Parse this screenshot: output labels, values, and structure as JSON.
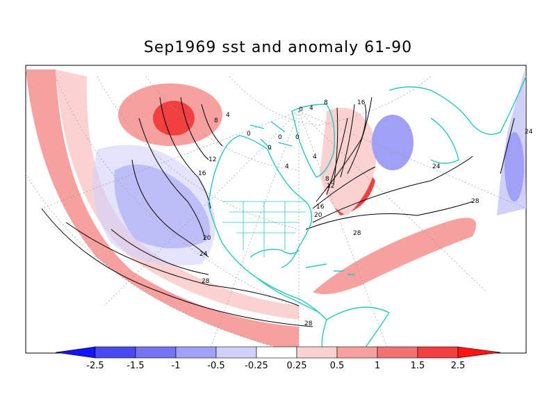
{
  "title": "Sep1969 sst and anomaly 61-90",
  "colors": {
    "ocean": "#ffffff",
    "coast": "#26c6c6",
    "contour": "#000000",
    "grid": "#9a9a9a"
  },
  "colorbar": {
    "ticks": [
      "-2.5",
      "-1.5",
      "-1",
      "-0.5",
      "-0.25",
      "0.25",
      "0.5",
      "1",
      "1.5",
      "2.5"
    ],
    "colors": [
      "#1414ff",
      "#4a4af0",
      "#7474f2",
      "#a0a0f6",
      "#d0d0fa",
      "#ffffff",
      "#fad2d2",
      "#f6a0a0",
      "#f27272",
      "#f24040",
      "#ff1414"
    ]
  },
  "contour_labels": [
    "0",
    "0",
    "0",
    "0",
    "0",
    "4",
    "4",
    "4",
    "4",
    "8",
    "8",
    "8",
    "12",
    "12",
    "16",
    "16",
    "16",
    "20",
    "20",
    "24",
    "24",
    "24",
    "28",
    "28",
    "28",
    "28"
  ]
}
